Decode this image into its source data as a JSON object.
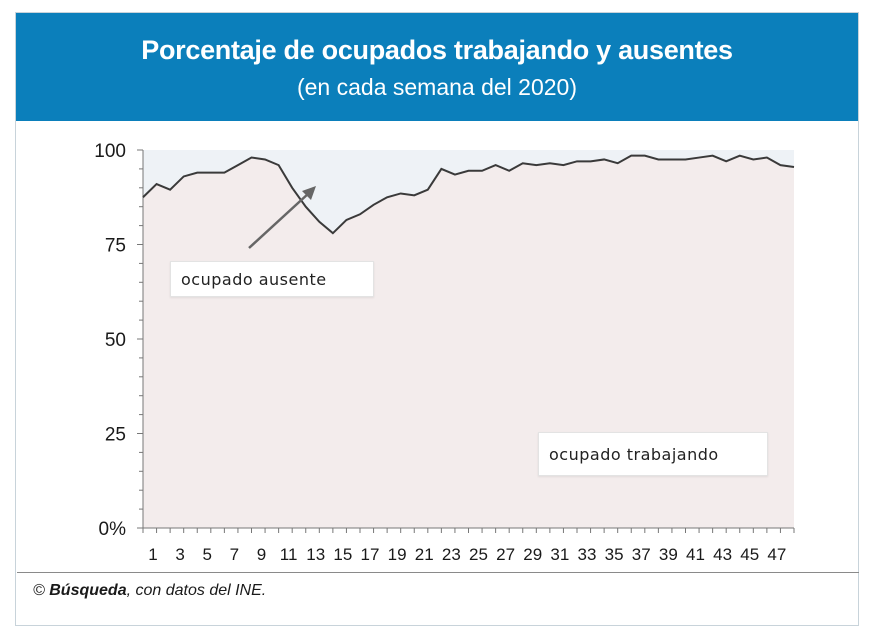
{
  "header": {
    "title": "Porcentaje de ocupados trabajando y ausentes",
    "subtitle": "(en cada semana del 2020)"
  },
  "colors": {
    "header_bg": "#0b7fbb",
    "area_trabajando": "#f3ecec",
    "area_ausente": "#eef2f6",
    "line": "#3a3a3a"
  },
  "labels": {
    "ausente": "ocupado ausente",
    "trabajando": "ocupado trabajando"
  },
  "source": {
    "symbol": "©",
    "brand": "Búsqueda",
    "rest": ", con datos del INE."
  },
  "chart_data": {
    "type": "area",
    "title": "Porcentaje de ocupados trabajando y ausentes",
    "subtitle": "(en cada semana del 2020)",
    "xlabel": "",
    "ylabel": "",
    "ylim": [
      0,
      100
    ],
    "yticks": [
      "100",
      "75",
      "50",
      "25",
      "0%"
    ],
    "ytick_values": [
      100,
      75,
      50,
      25,
      0
    ],
    "xticks": [
      "1",
      "3",
      "5",
      "7",
      "9",
      "11",
      "13",
      "15",
      "17",
      "19",
      "21",
      "23",
      "25",
      "27",
      "29",
      "31",
      "33",
      "35",
      "37",
      "39",
      "41",
      "43",
      "45",
      "47"
    ],
    "x": [
      1,
      2,
      3,
      4,
      5,
      6,
      7,
      8,
      9,
      10,
      11,
      12,
      13,
      14,
      15,
      16,
      17,
      18,
      19,
      20,
      21,
      22,
      23,
      24,
      25,
      26,
      27,
      28,
      29,
      30,
      31,
      32,
      33,
      34,
      35,
      36,
      37,
      38,
      39,
      40,
      41,
      42,
      43,
      44,
      45,
      46,
      47,
      48,
      49
    ],
    "series": [
      {
        "name": "ocupado trabajando",
        "values": [
          87.5,
          91,
          89.5,
          93,
          94,
          94,
          94,
          96,
          98,
          97.5,
          96,
          90,
          85,
          81,
          78,
          81.5,
          83,
          85.5,
          87.5,
          88.5,
          88,
          89.5,
          95,
          93.5,
          94.5,
          94.5,
          96,
          94.5,
          96.5,
          96,
          96.5,
          96,
          97,
          97,
          97.5,
          96.5,
          98.5,
          98.5,
          97.5,
          97.5,
          97.5,
          98,
          98.5,
          97,
          98.5,
          97.5,
          98,
          96,
          95.5
        ]
      },
      {
        "name": "ocupado ausente",
        "values": [
          12.5,
          9,
          10.5,
          7,
          6,
          6,
          6,
          4,
          2,
          2.5,
          4,
          10,
          15,
          19,
          22,
          18.5,
          17,
          14.5,
          12.5,
          11.5,
          12,
          10.5,
          5,
          6.5,
          5.5,
          5.5,
          4,
          5.5,
          3.5,
          4,
          3.5,
          4,
          3,
          3,
          2.5,
          3.5,
          1.5,
          1.5,
          2.5,
          2.5,
          2.5,
          2,
          1.5,
          3,
          1.5,
          2.5,
          2,
          4,
          4.5
        ]
      }
    ],
    "grid": false,
    "legend": "inline labels"
  }
}
